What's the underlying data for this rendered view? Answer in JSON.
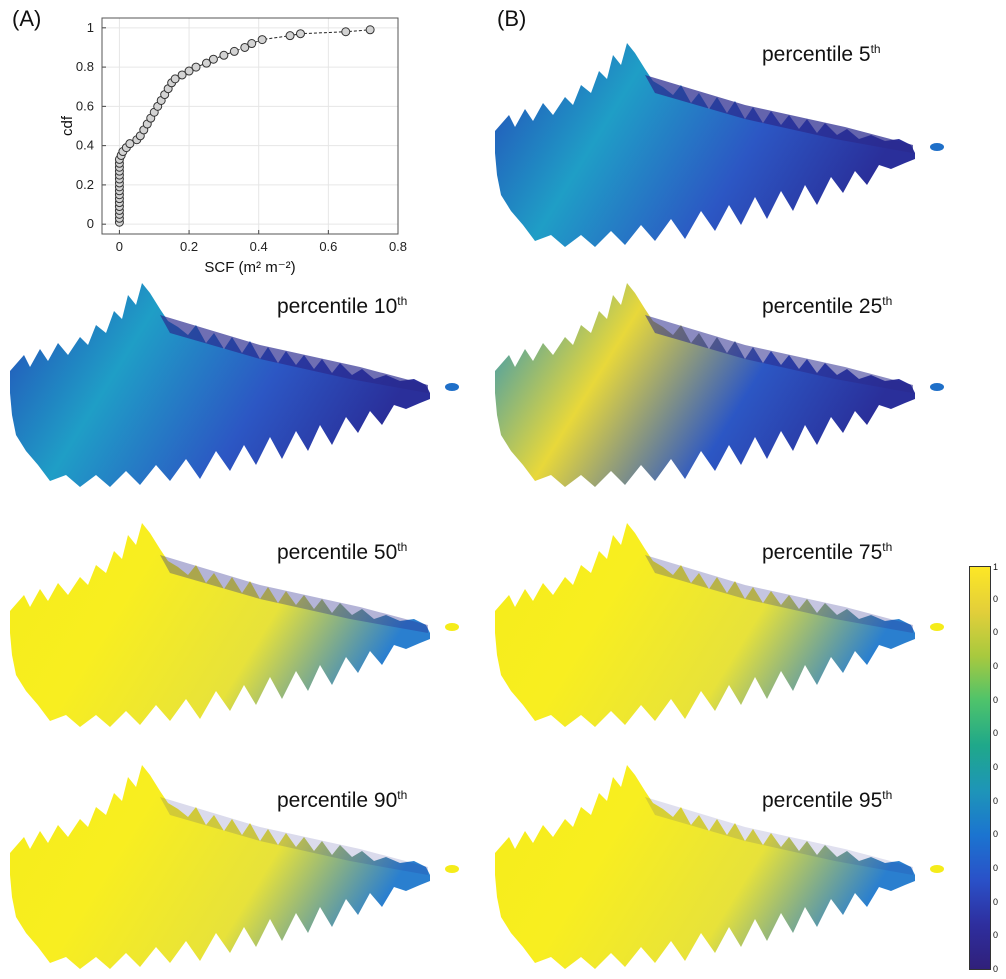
{
  "panels": {
    "a_label": "(A)",
    "b_label": "(B)"
  },
  "chart_data": {
    "type": "scatter",
    "title": "",
    "xlabel": "SCF (m² m⁻²)",
    "ylabel": "cdf",
    "xlim": [
      -0.05,
      0.8
    ],
    "ylim": [
      -0.05,
      1.05
    ],
    "xticks": [
      "0",
      "0.2",
      "0.4",
      "0.6",
      "0.8"
    ],
    "xtick_values": [
      0,
      0.2,
      0.4,
      0.6,
      0.8
    ],
    "yticks": [
      "0",
      "0.2",
      "0.4",
      "0.6",
      "0.8",
      "1"
    ],
    "ytick_values": [
      0,
      0.2,
      0.4,
      0.6,
      0.8,
      1
    ],
    "grid": true,
    "marker_color": "#d3d3d3",
    "line_style": "dashed",
    "points": [
      [
        0,
        0.01
      ],
      [
        0,
        0.03
      ],
      [
        0,
        0.05
      ],
      [
        0,
        0.07
      ],
      [
        0,
        0.09
      ],
      [
        0,
        0.11
      ],
      [
        0,
        0.13
      ],
      [
        0,
        0.15
      ],
      [
        0,
        0.17
      ],
      [
        0,
        0.19
      ],
      [
        0,
        0.21
      ],
      [
        0,
        0.23
      ],
      [
        0,
        0.25
      ],
      [
        0,
        0.27
      ],
      [
        0,
        0.29
      ],
      [
        0,
        0.31
      ],
      [
        0,
        0.33
      ],
      [
        0.005,
        0.35
      ],
      [
        0.01,
        0.37
      ],
      [
        0.02,
        0.39
      ],
      [
        0.03,
        0.41
      ],
      [
        0.05,
        0.43
      ],
      [
        0.06,
        0.45
      ],
      [
        0.07,
        0.48
      ],
      [
        0.08,
        0.51
      ],
      [
        0.09,
        0.54
      ],
      [
        0.1,
        0.57
      ],
      [
        0.11,
        0.6
      ],
      [
        0.12,
        0.63
      ],
      [
        0.13,
        0.66
      ],
      [
        0.14,
        0.69
      ],
      [
        0.15,
        0.72
      ],
      [
        0.16,
        0.74
      ],
      [
        0.18,
        0.76
      ],
      [
        0.2,
        0.78
      ],
      [
        0.22,
        0.8
      ],
      [
        0.25,
        0.82
      ],
      [
        0.27,
        0.84
      ],
      [
        0.3,
        0.86
      ],
      [
        0.33,
        0.88
      ],
      [
        0.36,
        0.9
      ],
      [
        0.38,
        0.92
      ],
      [
        0.41,
        0.94
      ],
      [
        0.49,
        0.96
      ],
      [
        0.52,
        0.97
      ],
      [
        0.65,
        0.98
      ],
      [
        0.72,
        0.99
      ]
    ]
  },
  "maps": [
    {
      "label": "percentile 5",
      "sup": "th",
      "level": 0.15
    },
    {
      "label": "percentile 10",
      "sup": "th",
      "level": 0.22
    },
    {
      "label": "percentile 25",
      "sup": "th",
      "level": 0.38
    },
    {
      "label": "percentile 50",
      "sup": "th",
      "level": 0.62
    },
    {
      "label": "percentile 75",
      "sup": "th",
      "level": 0.72
    },
    {
      "label": "percentile 90",
      "sup": "th",
      "level": 0.85
    },
    {
      "label": "percentile 95",
      "sup": "th",
      "level": 0.88
    }
  ],
  "colorbar": {
    "top_label": "1",
    "tick_labels": [
      "0",
      "0",
      "0",
      "0",
      "0",
      "0",
      "0",
      "0",
      "0",
      "0",
      "0"
    ],
    "bottom_label": "0",
    "colors": [
      "#fde725",
      "#e3cf3a",
      "#a8c93e",
      "#4ec36b",
      "#1fa88a",
      "#1e95b8",
      "#1b74d0",
      "#2a51c8",
      "#2e2e9e",
      "#30207a"
    ]
  }
}
